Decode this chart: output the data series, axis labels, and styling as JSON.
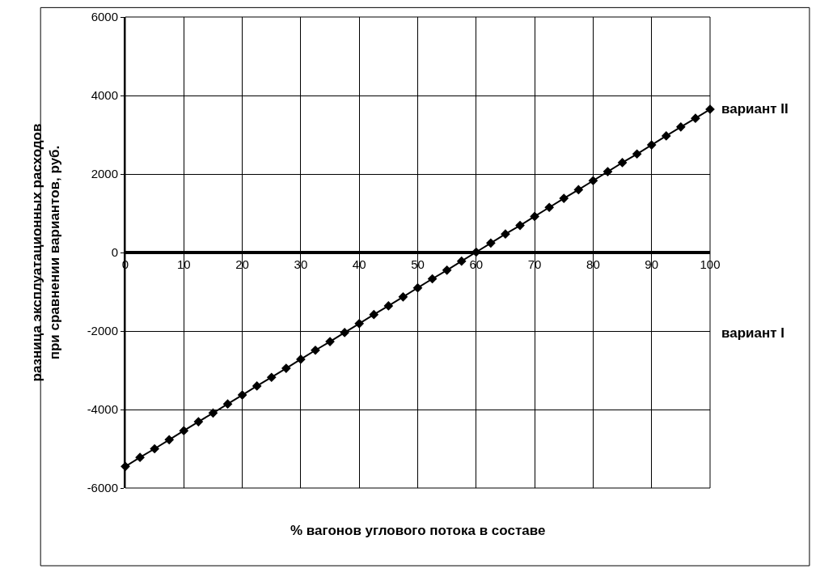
{
  "chart_data": {
    "type": "line",
    "xlabel": "% вагонов углового потока в составе",
    "ylabel": "разница эксплуатационных расходов при сравнении вариантов, руб.",
    "x": [
      0,
      2.5,
      5,
      7.5,
      10,
      12.5,
      15,
      17.5,
      20,
      22.5,
      25,
      27.5,
      30,
      32.5,
      35,
      37.5,
      40,
      42.5,
      45,
      47.5,
      50,
      52.5,
      55,
      57.5,
      60,
      62.5,
      65,
      67.5,
      70,
      72.5,
      75,
      77.5,
      80,
      82.5,
      85,
      87.5,
      90,
      92.5,
      95,
      97.5,
      100
    ],
    "series": [
      {
        "color": "#000000",
        "values": [
          -5450,
          -5220,
          -5000,
          -4770,
          -4540,
          -4310,
          -4090,
          -3860,
          -3630,
          -3400,
          -3180,
          -2950,
          -2720,
          -2490,
          -2270,
          -2040,
          -1810,
          -1580,
          -1360,
          -1130,
          -900,
          -670,
          -450,
          -220,
          10,
          240,
          470,
          690,
          920,
          1150,
          1380,
          1600,
          1830,
          2060,
          2290,
          2510,
          2740,
          2970,
          3200,
          3420,
          3650
        ]
      }
    ],
    "xlim": [
      0,
      100
    ],
    "xticks": [
      0,
      10,
      20,
      30,
      40,
      50,
      60,
      70,
      80,
      90,
      100
    ],
    "ylim": [
      -6000,
      6000
    ],
    "yticks": [
      -6000,
      -4000,
      -2000,
      0,
      2000,
      4000,
      6000
    ],
    "grid": true,
    "legend": false,
    "marker": "diamond",
    "line_style": "solid",
    "annotations": [
      {
        "text": "вариант II",
        "x": 100,
        "y": 3650
      },
      "вариант I"
    ]
  }
}
